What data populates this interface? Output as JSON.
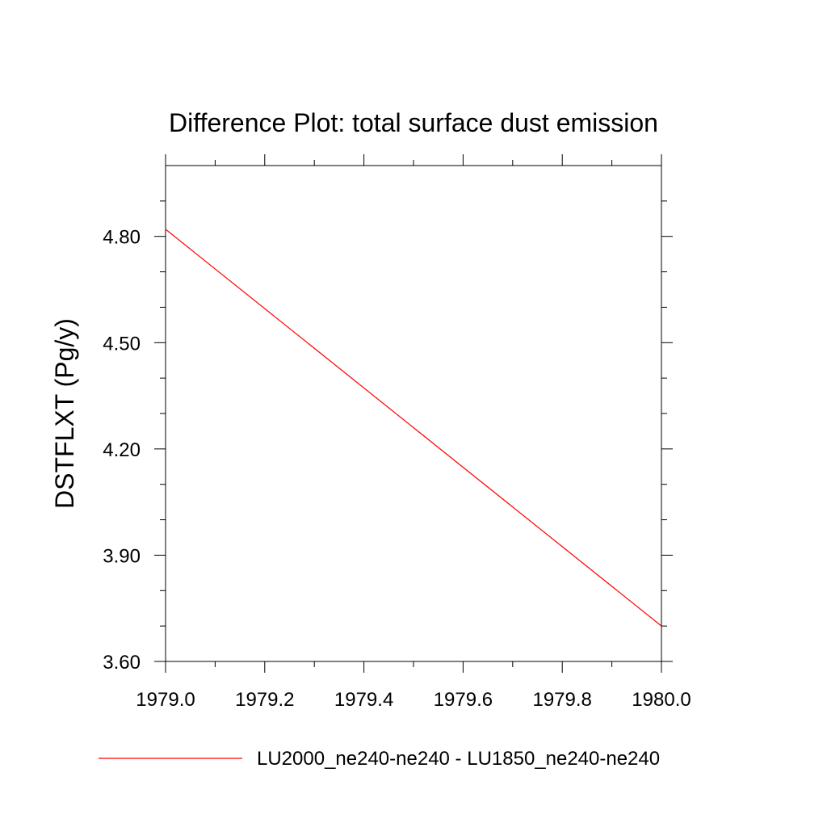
{
  "chart_data": {
    "type": "line",
    "title": "Difference Plot: total surface dust emission",
    "xlabel": "",
    "ylabel": "DSTFLXT  (Pg/y)",
    "xlim": [
      1979.0,
      1980.0
    ],
    "ylim": [
      3.6,
      5.0
    ],
    "x_ticks": [
      1979.0,
      1979.2,
      1979.4,
      1979.6,
      1979.8,
      1980.0
    ],
    "x_tick_labels": [
      "1979.0",
      "1979.2",
      "1979.4",
      "1979.6",
      "1979.8",
      "1980.0"
    ],
    "x_minor_ticks": [
      1979.1,
      1979.3,
      1979.5,
      1979.7,
      1979.9
    ],
    "y_ticks": [
      3.6,
      3.9,
      4.2,
      4.5,
      4.8
    ],
    "y_tick_labels": [
      "3.60",
      "3.90",
      "4.20",
      "4.50",
      "4.80"
    ],
    "y_minor_ticks": [
      3.7,
      3.8,
      4.0,
      4.1,
      4.3,
      4.4,
      4.6,
      4.7,
      4.9
    ],
    "grid": false,
    "legend_position": "bottom",
    "series": [
      {
        "name": "LU2000_ne240-ne240 - LU1850_ne240-ne240",
        "color": "#ff0000",
        "x": [
          1979.0,
          1980.0
        ],
        "y": [
          4.82,
          3.7
        ]
      }
    ]
  }
}
